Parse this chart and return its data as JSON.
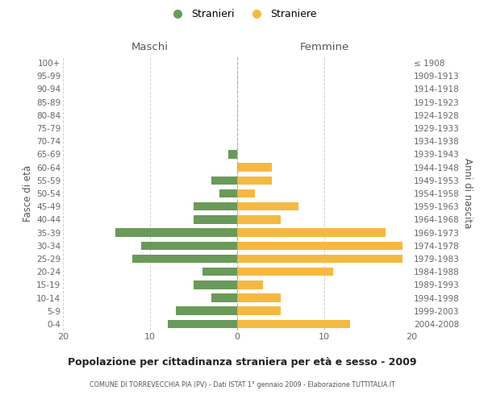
{
  "age_groups": [
    "0-4",
    "5-9",
    "10-14",
    "15-19",
    "20-24",
    "25-29",
    "30-34",
    "35-39",
    "40-44",
    "45-49",
    "50-54",
    "55-59",
    "60-64",
    "65-69",
    "70-74",
    "75-79",
    "80-84",
    "85-89",
    "90-94",
    "95-99",
    "100+"
  ],
  "birth_years": [
    "2004-2008",
    "1999-2003",
    "1994-1998",
    "1989-1993",
    "1984-1988",
    "1979-1983",
    "1974-1978",
    "1969-1973",
    "1964-1968",
    "1959-1963",
    "1954-1958",
    "1949-1953",
    "1944-1948",
    "1939-1943",
    "1934-1938",
    "1929-1933",
    "1924-1928",
    "1919-1923",
    "1914-1918",
    "1909-1913",
    "≤ 1908"
  ],
  "maschi": [
    8,
    7,
    3,
    5,
    4,
    12,
    11,
    14,
    5,
    5,
    2,
    3,
    0,
    1,
    0,
    0,
    0,
    0,
    0,
    0,
    0
  ],
  "femmine": [
    13,
    5,
    5,
    3,
    11,
    19,
    19,
    17,
    5,
    7,
    2,
    4,
    4,
    0,
    0,
    0,
    0,
    0,
    0,
    0,
    0
  ],
  "maschi_color": "#6a9a5a",
  "femmine_color": "#f5b942",
  "title": "Popolazione per cittadinanza straniera per età e sesso - 2009",
  "subtitle": "COMUNE DI TORREVECCHIA PIA (PV) - Dati ISTAT 1° gennaio 2009 - Elaborazione TUTTITALIA.IT",
  "xlabel_left": "Maschi",
  "xlabel_right": "Femmine",
  "ylabel_left": "Fasce di età",
  "ylabel_right": "Anni di nascita",
  "legend_maschi": "Stranieri",
  "legend_femmine": "Straniere",
  "xlim": 20,
  "background_color": "#ffffff",
  "grid_color": "#cccccc"
}
